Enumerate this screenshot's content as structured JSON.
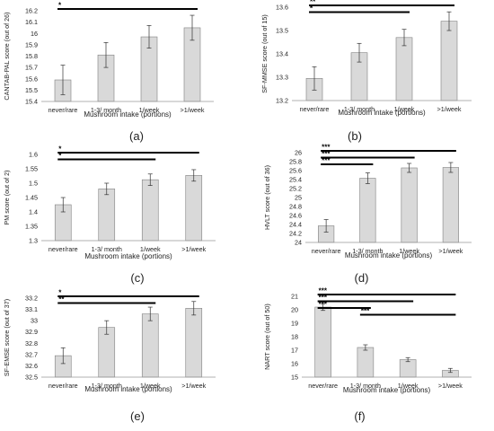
{
  "chart_data": [
    {
      "type": "bar",
      "panel_label": "(a)",
      "categories": [
        "never/rare",
        "1-3/ month",
        "1/week",
        ">1/week"
      ],
      "values": [
        15.59,
        15.81,
        15.97,
        16.05
      ],
      "errors": [
        0.13,
        0.11,
        0.1,
        0.11
      ],
      "ylabel": "CANTAB-PAL score (out of 26)",
      "xlabel": "Mushroom intake (portions)",
      "ylim": [
        15.4,
        16.2
      ],
      "yticks": [
        15.4,
        15.5,
        15.6,
        15.7,
        15.8,
        15.9,
        16,
        16.1,
        16.2
      ],
      "sig_bars": [
        {
          "label": "*",
          "from": 0,
          "to": 3
        }
      ]
    },
    {
      "type": "bar",
      "panel_label": "(b)",
      "categories": [
        "never/rare",
        "1-3/ month",
        "1/week",
        ">1/week"
      ],
      "values": [
        13.295,
        13.405,
        13.47,
        13.54
      ],
      "errors": [
        0.05,
        0.04,
        0.035,
        0.04
      ],
      "ylabel": "SF-MMSE score (out of 15)",
      "xlabel": "Mushroom intake (portions)",
      "ylim": [
        13.2,
        13.6
      ],
      "yticks": [
        13.2,
        13.3,
        13.4,
        13.5,
        13.6
      ],
      "sig_bars": [
        {
          "label": "**",
          "from": 0,
          "to": 3
        },
        {
          "label": "*",
          "from": 0,
          "to": 2
        }
      ]
    },
    {
      "type": "bar",
      "panel_label": "(c)",
      "categories": [
        "never/rare",
        "1-3/ month",
        "1/week",
        ">1/week"
      ],
      "values": [
        1.425,
        1.48,
        1.512,
        1.527
      ],
      "errors": [
        0.025,
        0.02,
        0.02,
        0.02
      ],
      "ylabel": "PM score (out of 2)",
      "xlabel": "Mushroom intake (portions)",
      "ylim": [
        1.3,
        1.6
      ],
      "yticks": [
        1.3,
        1.35,
        1.4,
        1.45,
        1.5,
        1.55,
        1.6
      ],
      "sig_bars": [
        {
          "label": "*",
          "from": 0,
          "to": 3
        },
        {
          "label": "*",
          "from": 0,
          "to": 2
        }
      ]
    },
    {
      "type": "bar",
      "panel_label": "(d)",
      "categories": [
        "never/rare",
        "1-3/ month",
        "1/week",
        ">1/week"
      ],
      "values": [
        24.37,
        25.43,
        25.66,
        25.67
      ],
      "errors": [
        0.14,
        0.12,
        0.1,
        0.11
      ],
      "ylabel": "HVLT score (out of 36)",
      "xlabel": "Mushroom intake (portions)",
      "ylim": [
        24,
        26
      ],
      "yticks": [
        24,
        24.2,
        24.4,
        24.6,
        24.8,
        25,
        25.2,
        25.4,
        25.6,
        25.8,
        26
      ],
      "sig_bars": [
        {
          "label": "***",
          "from": 0,
          "to": 3
        },
        {
          "label": "***",
          "from": 0,
          "to": 2
        },
        {
          "label": "***",
          "from": 0,
          "to": 1
        }
      ]
    },
    {
      "type": "bar",
      "panel_label": "(e)",
      "categories": [
        "never/rare",
        "1-3/ month",
        "1/week",
        ">1/week"
      ],
      "values": [
        32.69,
        32.94,
        33.06,
        33.11
      ],
      "errors": [
        0.07,
        0.06,
        0.06,
        0.06
      ],
      "ylabel": "SF-EMSE score (out of 37)",
      "xlabel": "Mushroom intake (portions)",
      "ylim": [
        32.5,
        33.2
      ],
      "yticks": [
        32.5,
        32.6,
        32.7,
        32.8,
        32.9,
        33,
        33.1,
        33.2
      ],
      "sig_bars": [
        {
          "label": "*",
          "from": 0,
          "to": 3
        },
        {
          "label": "**",
          "from": 0,
          "to": 2
        }
      ]
    },
    {
      "type": "bar",
      "panel_label": "(f)",
      "categories": [
        "never/rare",
        "1-3/ month",
        "1/week",
        ">1/week"
      ],
      "values": [
        20.2,
        17.2,
        16.3,
        15.5
      ],
      "errors": [
        0.25,
        0.2,
        0.15,
        0.15
      ],
      "ylabel": "NART score (out of 50)",
      "xlabel": "Mushroom intake (portions)",
      "ylim": [
        15,
        21
      ],
      "yticks": [
        15,
        16,
        17,
        18,
        19,
        20,
        21
      ],
      "sig_bars": [
        {
          "label": "***",
          "from": 0,
          "to": 3
        },
        {
          "label": "***",
          "from": 0,
          "to": 2
        },
        {
          "label": "***",
          "from": 0,
          "to": 1
        },
        {
          "label": "***",
          "from": 1,
          "to": 3
        }
      ]
    }
  ],
  "colors": {
    "bar_fill": "#d9d9d9",
    "bar_stroke": "#808080",
    "axis": "#999999",
    "text": "#222222",
    "sig_line": "#000000"
  }
}
